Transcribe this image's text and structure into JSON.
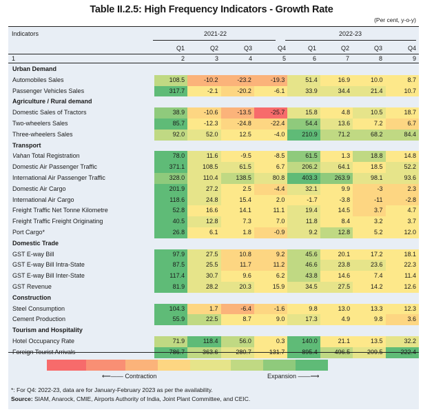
{
  "title": "Table II.2.5: High Frequency Indicators - Growth Rate",
  "units": "(Per cent, y-o-y)",
  "header": {
    "indicators_label": "Indicators",
    "years": [
      "2021-22",
      "2022-23"
    ],
    "quarters": [
      "Q1",
      "Q2",
      "Q3",
      "Q4",
      "Q1",
      "Q2",
      "Q3",
      "Q4"
    ],
    "column_numbers": [
      "1",
      "2",
      "3",
      "4",
      "5",
      "6",
      "7",
      "8",
      "9"
    ]
  },
  "palette": {
    "c0": "#f76b6b",
    "c1": "#f98f74",
    "c2": "#fbb37a",
    "c3": "#fdd682",
    "c4": "#fde88a",
    "c5": "#e6e48a",
    "c6": "#c0d983",
    "c7": "#8fca7c",
    "c8": "#5fbb77"
  },
  "sections": [
    {
      "name": "Urban Demand",
      "rows": [
        {
          "label": "Automobiles Sales",
          "values": [
            "108.5",
            "-10.2",
            "-23.2",
            "-19.3",
            "51.4",
            "16.9",
            "10.0",
            "8.7"
          ],
          "colors": [
            "c6",
            "c2",
            "c2",
            "c2",
            "c5",
            "c4",
            "c4",
            "c4"
          ]
        },
        {
          "label": "Passenger Vehicles Sales",
          "values": [
            "317.7",
            "-2.1",
            "-20.2",
            "-6.1",
            "33.9",
            "34.4",
            "21.4",
            "10.7"
          ],
          "colors": [
            "c8",
            "c4",
            "c3",
            "c4",
            "c5",
            "c5",
            "c5",
            "c4"
          ]
        }
      ]
    },
    {
      "name": "Agriculture / Rural demand",
      "rows": [
        {
          "label": "Domestic Sales of Tractors",
          "values": [
            "38.9",
            "-10.6",
            "-13.5",
            "-25.7",
            "15.8",
            "4.8",
            "10.5",
            "18.7"
          ],
          "colors": [
            "c7",
            "c3",
            "c2",
            "c0",
            "c5",
            "c4",
            "c5",
            "c4"
          ]
        },
        {
          "label": "Two-wheelers Sales",
          "values": [
            "85.7",
            "-12.3",
            "-24.8",
            "-22.4",
            "54.4",
            "13.6",
            "7.2",
            "6.7"
          ],
          "colors": [
            "c8",
            "c4",
            "c3",
            "c3",
            "c7",
            "c5",
            "c4",
            "c3"
          ]
        },
        {
          "label": "Three-wheelers Sales",
          "values": [
            "92.0",
            "52.0",
            "12.5",
            "-4.0",
            "210.9",
            "71.2",
            "68.2",
            "84.4"
          ],
          "colors": [
            "c6",
            "c5",
            "c4",
            "c4",
            "c8",
            "c6",
            "c6",
            "c6"
          ]
        }
      ]
    },
    {
      "name": "Transport",
      "rows": [
        {
          "label_italic": "Vahan",
          "label": " Total Registration",
          "values": [
            "78.0",
            "11.6",
            "-9.5",
            "-8.5",
            "61.5",
            "1.3",
            "18.8",
            "14.8"
          ],
          "colors": [
            "c8",
            "c5",
            "c4",
            "c4",
            "c7",
            "c4",
            "c6",
            "c4"
          ]
        },
        {
          "label": "Domestic Air Passenger Traffic",
          "values": [
            "371.1",
            "108.5",
            "61.5",
            "6.7",
            "206.2",
            "64.1",
            "18.5",
            "52.2"
          ],
          "colors": [
            "c8",
            "c5",
            "c5",
            "c4",
            "c6",
            "c5",
            "c4",
            "c5"
          ]
        },
        {
          "label": "International Air Passenger Traffic",
          "values": [
            "328.0",
            "110.4",
            "138.5",
            "80.8",
            "403.3",
            "263.9",
            "98.1",
            "93.6"
          ],
          "colors": [
            "c7",
            "c5",
            "c6",
            "c5",
            "c8",
            "c7",
            "c5",
            "c5"
          ]
        },
        {
          "label": "Domestic Air Cargo",
          "values": [
            "201.9",
            "27.2",
            "2.5",
            "-4.4",
            "32.1",
            "9.9",
            "-3",
            "2.3"
          ],
          "colors": [
            "c8",
            "c5",
            "c4",
            "c3",
            "c5",
            "c4",
            "c3",
            "c3"
          ]
        },
        {
          "label": "International Air Cargo",
          "values": [
            "118.6",
            "24.8",
            "15.4",
            "2.0",
            "-1.7",
            "-3.8",
            "-11",
            "-2.8"
          ],
          "colors": [
            "c8",
            "c5",
            "c4",
            "c4",
            "c4",
            "c4",
            "c3",
            "c3"
          ]
        },
        {
          "label": "Freight Traffic Net Tonne Kilometre",
          "values": [
            "52.8",
            "16.6",
            "14.1",
            "11.1",
            "19.4",
            "14.5",
            "3.7",
            "4.7"
          ],
          "colors": [
            "c8",
            "c4",
            "c4",
            "c4",
            "c5",
            "c4",
            "c3",
            "c4"
          ]
        },
        {
          "label": "Freight Traffic Freight Originating",
          "values": [
            "40.5",
            "12.8",
            "7.3",
            "7.0",
            "11.8",
            "8.4",
            "3.2",
            "3.7"
          ],
          "colors": [
            "c8",
            "c5",
            "c4",
            "c4",
            "c5",
            "c4",
            "c4",
            "c4"
          ]
        },
        {
          "label": "Port Cargo*",
          "values": [
            "26.8",
            "6.1",
            "1.8",
            "-0.9",
            "9.2",
            "12.8",
            "5.2",
            "12.0"
          ],
          "colors": [
            "c8",
            "c4",
            "c4",
            "c3",
            "c5",
            "c6",
            "c4",
            "c4"
          ]
        }
      ]
    },
    {
      "name": "Domestic Trade",
      "rows": [
        {
          "label": "GST E-way Bill",
          "values": [
            "97.9",
            "27.5",
            "10.8",
            "9.2",
            "45.6",
            "20.1",
            "17.2",
            "18.1"
          ],
          "colors": [
            "c8",
            "c5",
            "c3",
            "c3",
            "c6",
            "c4",
            "c4",
            "c4"
          ]
        },
        {
          "label": "GST E-way Bill Intra-State",
          "values": [
            "87.5",
            "25.5",
            "11.7",
            "11.2",
            "46.6",
            "23.8",
            "23.6",
            "22.3"
          ],
          "colors": [
            "c8",
            "c5",
            "c3",
            "c3",
            "c6",
            "c5",
            "c5",
            "c4"
          ]
        },
        {
          "label": "GST E-way Bill Inter-State",
          "values": [
            "117.4",
            "30.7",
            "9.6",
            "6.2",
            "43.8",
            "14.6",
            "7.4",
            "11.4"
          ],
          "colors": [
            "c8",
            "c5",
            "c4",
            "c4",
            "c6",
            "c4",
            "c4",
            "c4"
          ]
        },
        {
          "label": "GST Revenue",
          "values": [
            "81.9",
            "28.2",
            "20.3",
            "15.9",
            "34.5",
            "27.5",
            "14.2",
            "12.6"
          ],
          "colors": [
            "c8",
            "c5",
            "c5",
            "c4",
            "c5",
            "c5",
            "c4",
            "c4"
          ]
        }
      ]
    },
    {
      "name": "Construction",
      "rows": [
        {
          "label": "Steel Consumption",
          "values": [
            "104.3",
            "1.7",
            "-6.4",
            "-1.6",
            "9.8",
            "13.0",
            "13.3",
            "12.3"
          ],
          "colors": [
            "c8",
            "c3",
            "c2",
            "c3",
            "c4",
            "c4",
            "c4",
            "c4"
          ]
        },
        {
          "label": "Cement Production",
          "values": [
            "55.9",
            "22.5",
            "8.7",
            "9.0",
            "17.3",
            "4.9",
            "9.8",
            "3.6"
          ],
          "colors": [
            "c8",
            "c6",
            "c4",
            "c4",
            "c5",
            "c4",
            "c4",
            "c3"
          ]
        }
      ]
    },
    {
      "name": "Tourism and Hospitality",
      "rows": [
        {
          "label": "Hotel Occupancy Rate",
          "values": [
            "71.9",
            "118.4",
            "56.0",
            "0.3",
            "140.0",
            "21.1",
            "13.5",
            "32.2"
          ],
          "colors": [
            "c6",
            "c8",
            "c6",
            "c4",
            "c8",
            "c4",
            "c4",
            "c5"
          ]
        },
        {
          "label": "Foreign Tourist Arrivals",
          "values": [
            "786.7",
            "363.6",
            "280.7",
            "131.7",
            "895.4",
            "496.5",
            "209.5",
            "222.4"
          ],
          "colors": [
            "c8",
            "c6",
            "c5",
            "c4",
            "c8",
            "c6",
            "c5",
            "c8"
          ]
        }
      ]
    }
  ],
  "legend": {
    "colors": [
      "#f76b6b",
      "#f98f74",
      "#fbb37a",
      "#fdd682",
      "#e6e48a",
      "#c0d983",
      "#8fca7c",
      "#5fbb77"
    ],
    "contraction_label": "⟵—— Contraction",
    "expansion_label": "Expansion ——⟶"
  },
  "footnote": "*: For Q4: 2022-23, data are for January-February 2023 as per the availability.",
  "source_label": "Source:",
  "source_text": " SIAM, Anarock, CMIE, Airports Authority of India, Joint Plant Committee, and CEIC."
}
